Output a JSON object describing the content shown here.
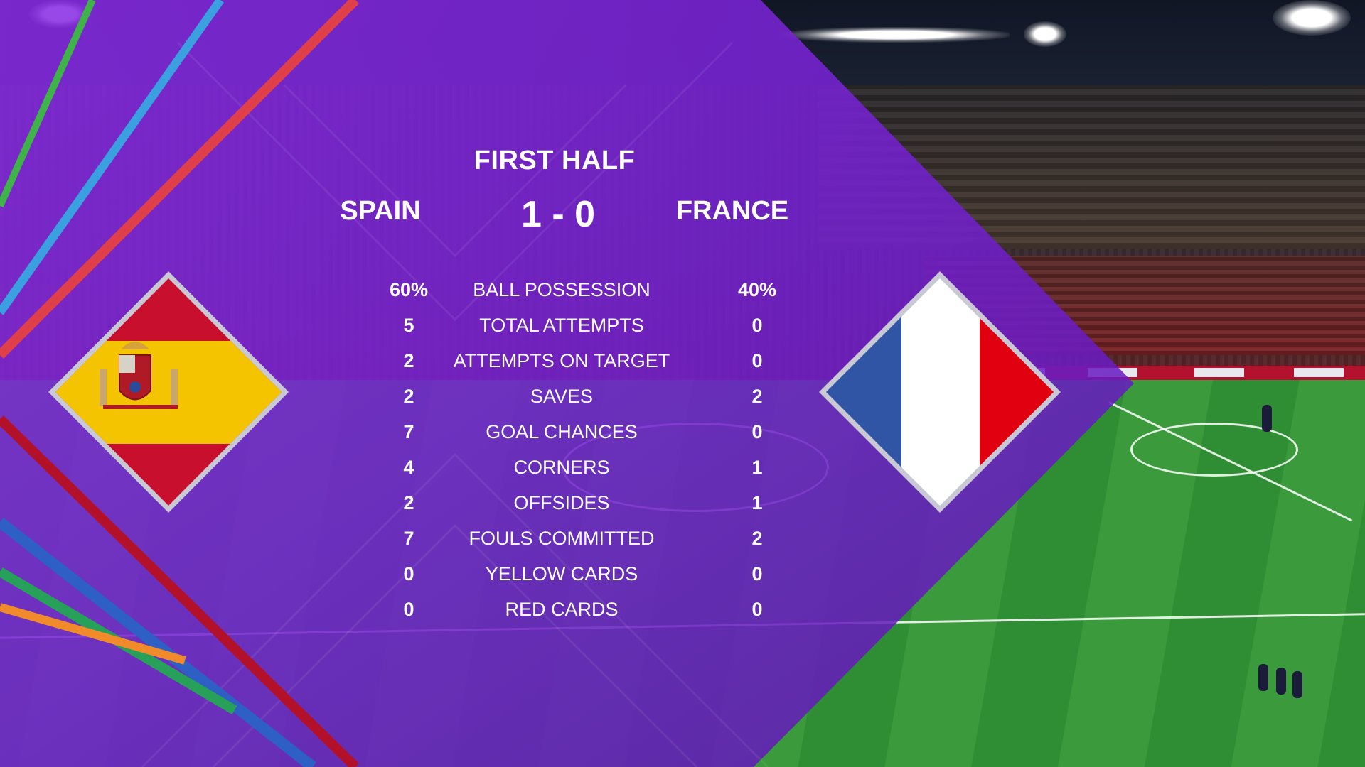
{
  "period": "FIRST HALF",
  "home_team": {
    "name": "SPAIN",
    "flag": "spain-flag"
  },
  "away_team": {
    "name": "FRANCE",
    "flag": "france-flag"
  },
  "score": "1 - 0",
  "stats": [
    {
      "home": "60%",
      "label": "BALL POSSESSION",
      "away": "40%"
    },
    {
      "home": "5",
      "label": "TOTAL ATTEMPTS",
      "away": "0"
    },
    {
      "home": "2",
      "label": "ATTEMPTS ON TARGET",
      "away": "0"
    },
    {
      "home": "2",
      "label": "SAVES",
      "away": "2"
    },
    {
      "home": "7",
      "label": "GOAL CHANCES",
      "away": "0"
    },
    {
      "home": "4",
      "label": "CORNERS",
      "away": "1"
    },
    {
      "home": "2",
      "label": "OFFSIDES",
      "away": "1"
    },
    {
      "home": "7",
      "label": "FOULS COMMITTED",
      "away": "2"
    },
    {
      "home": "0",
      "label": "YELLOW CARDS",
      "away": "0"
    },
    {
      "home": "0",
      "label": "RED CARDS",
      "away": "0"
    }
  ],
  "colors": {
    "panel_purple": "#7a22d6",
    "stripe_green": "#3fb24a",
    "stripe_blue": "#3aa0e0",
    "stripe_red": "#e0404a",
    "stripe_orange": "#f08a2a",
    "spain_red": "#c8102e",
    "spain_yellow": "#f5c400",
    "france_blue": "#2f55a4",
    "france_red": "#e1000f"
  }
}
